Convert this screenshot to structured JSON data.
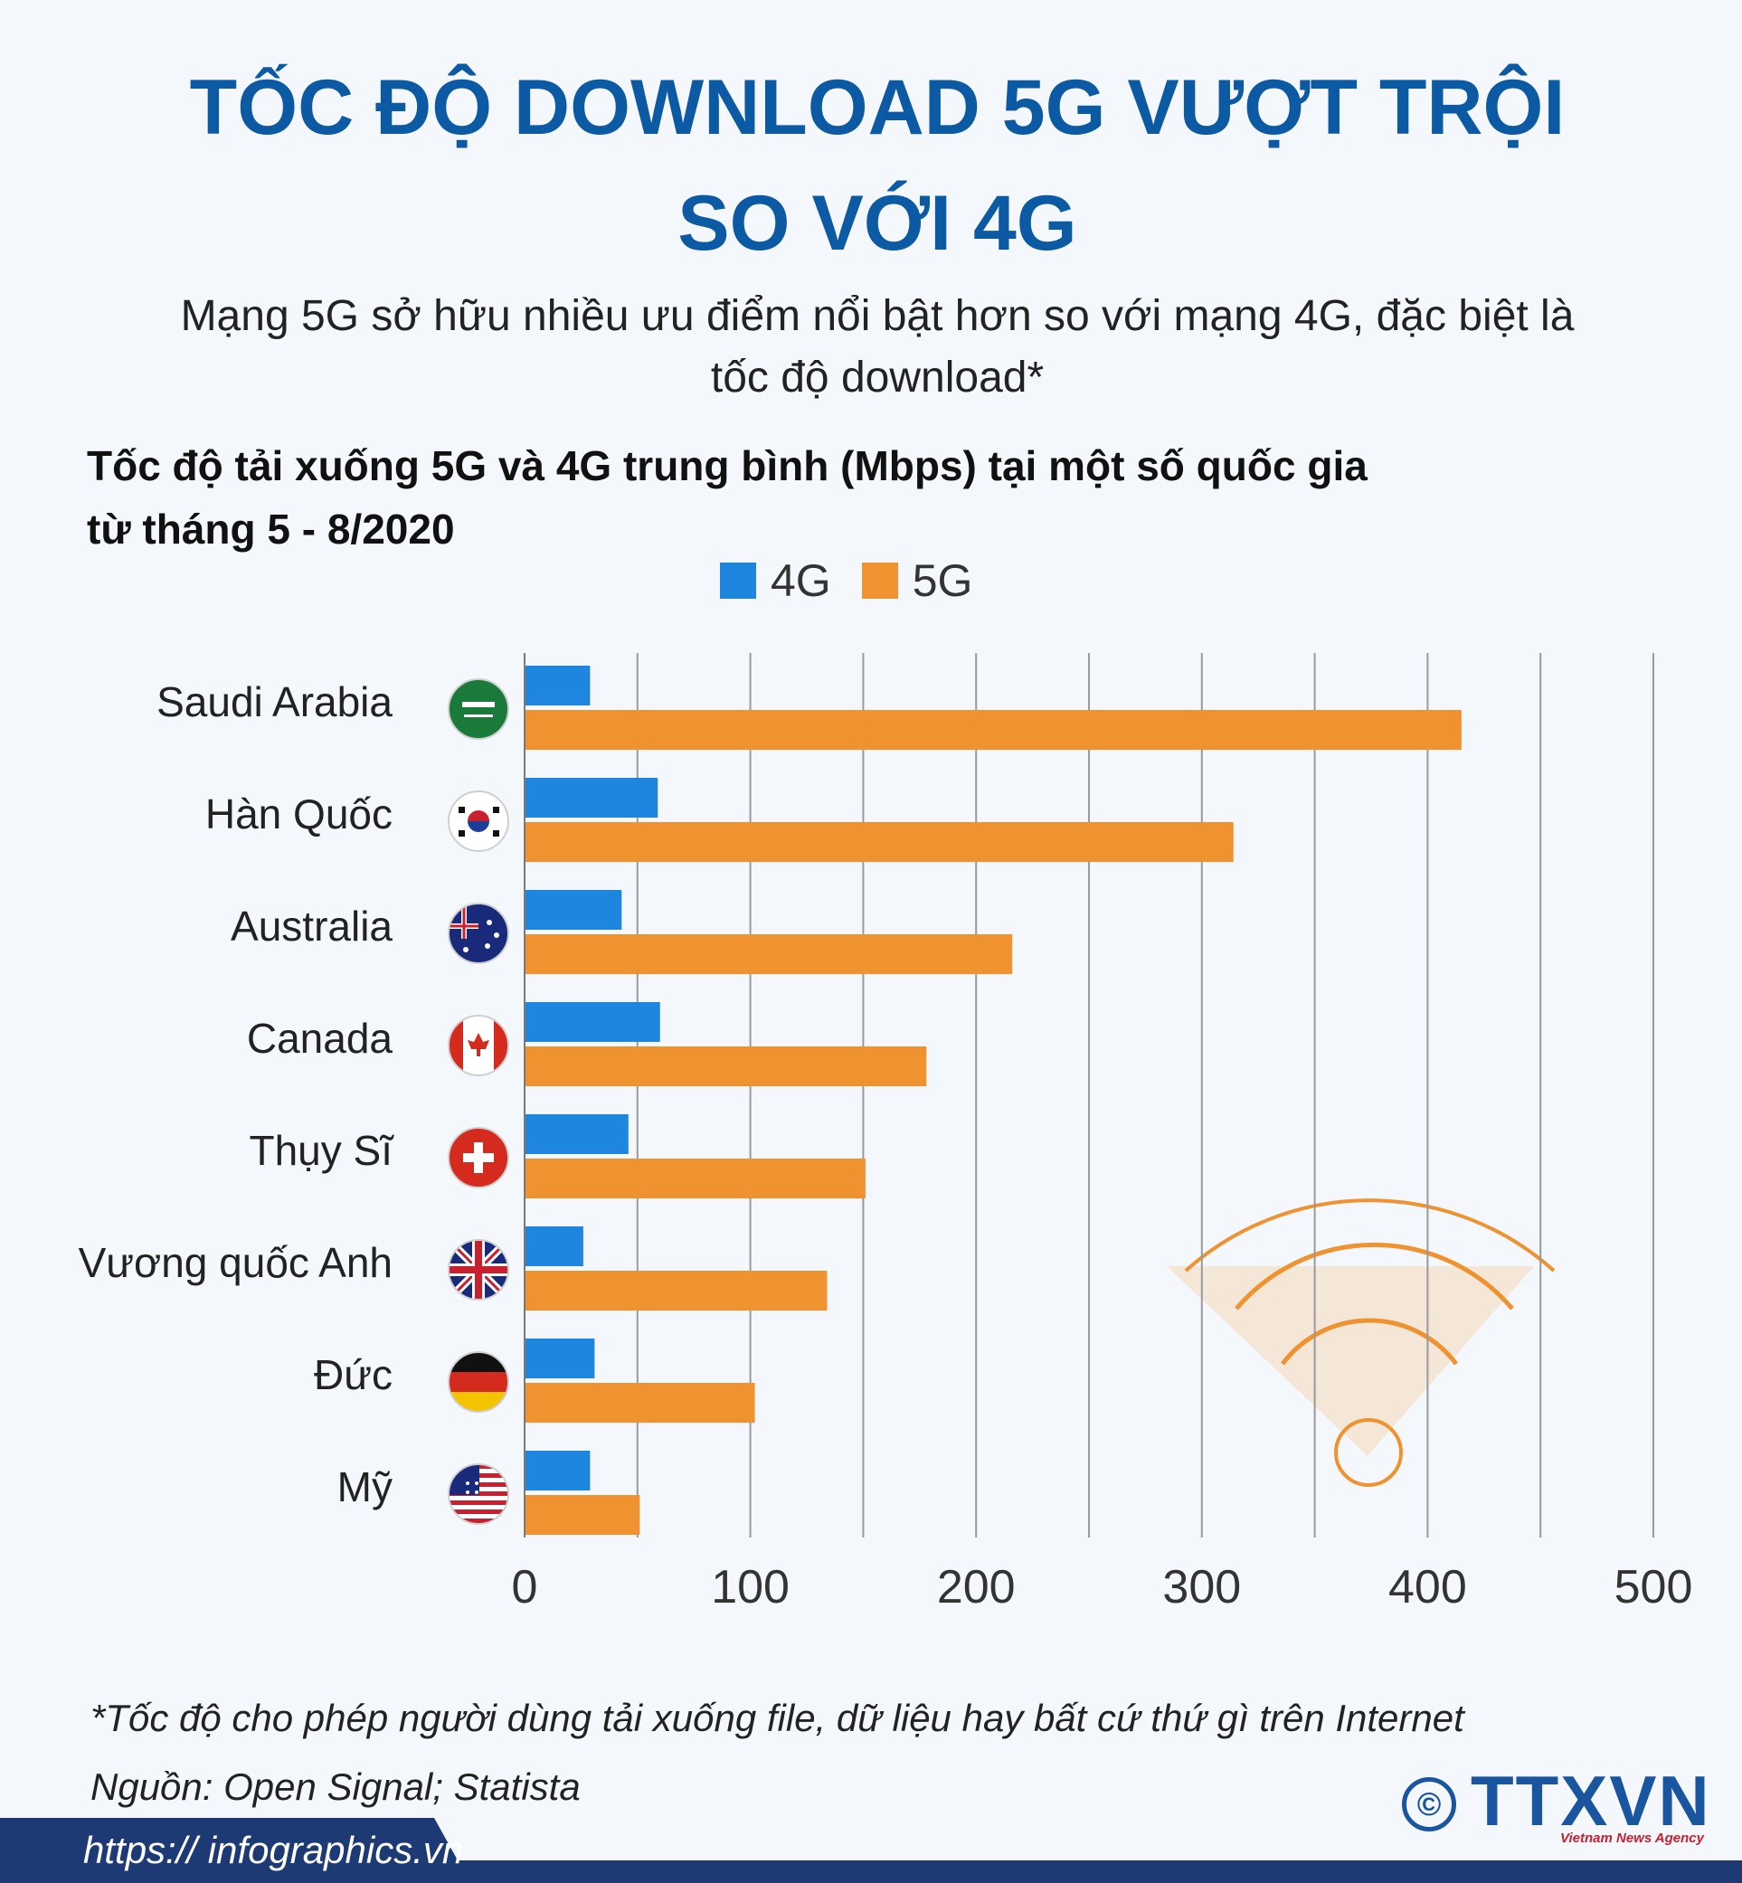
{
  "title_lines": [
    "TỐC ĐỘ DOWNLOAD 5G VƯỢT TRỘI",
    "SO VỚI 4G"
  ],
  "subtitle_lines": [
    "Mạng 5G sở hữu nhiều ưu điểm nổi bật hơn so với mạng 4G, đặc biệt là",
    "tốc độ download*"
  ],
  "chart_heading_lines": [
    "Tốc độ tải xuống 5G và 4G trung bình (Mbps) tại một số quốc gia",
    "từ tháng 5 - 8/2020"
  ],
  "footnote": "*Tốc độ cho phép người dùng tải xuống file, dữ liệu hay bất cứ thứ gì trên Internet",
  "source": "Nguồn: Open Signal; Statista",
  "url": "https:// infographics.vn",
  "logo": {
    "text": "TTXVN",
    "sub": "Vietnam News Agency",
    "copyright": "©"
  },
  "colors": {
    "4G": "#1f86e0",
    "5G": "#ef922f",
    "title": "#0b5aa3",
    "grid": "#9a9a9a"
  },
  "flag_icons": [
    "saudi-flag-icon",
    "korea-flag-icon",
    "australia-flag-icon",
    "canada-flag-icon",
    "switzerland-flag-icon",
    "uk-flag-icon",
    "germany-flag-icon",
    "usa-flag-icon"
  ],
  "chart_data": {
    "type": "bar",
    "orientation": "horizontal",
    "title": "Tốc độ tải xuống 5G và 4G trung bình (Mbps) tại một số quốc gia từ tháng 5 - 8/2020",
    "categories": [
      "Saudi Arabia",
      "Hàn Quốc",
      "Australia",
      "Canada",
      "Thụy Sĩ",
      "Vương quốc Anh",
      "Đức",
      "Mỹ"
    ],
    "series": [
      {
        "name": "4G",
        "values": [
          29,
          59,
          43,
          60,
          46,
          26,
          31,
          29
        ]
      },
      {
        "name": "5G",
        "values": [
          415,
          314,
          216,
          178,
          151,
          134,
          102,
          51
        ]
      }
    ],
    "xlim": [
      0,
      500
    ],
    "xticks": [
      0,
      100,
      200,
      300,
      400,
      500
    ],
    "grid": true,
    "legend": "top-center",
    "xlabel": "",
    "ylabel": ""
  }
}
